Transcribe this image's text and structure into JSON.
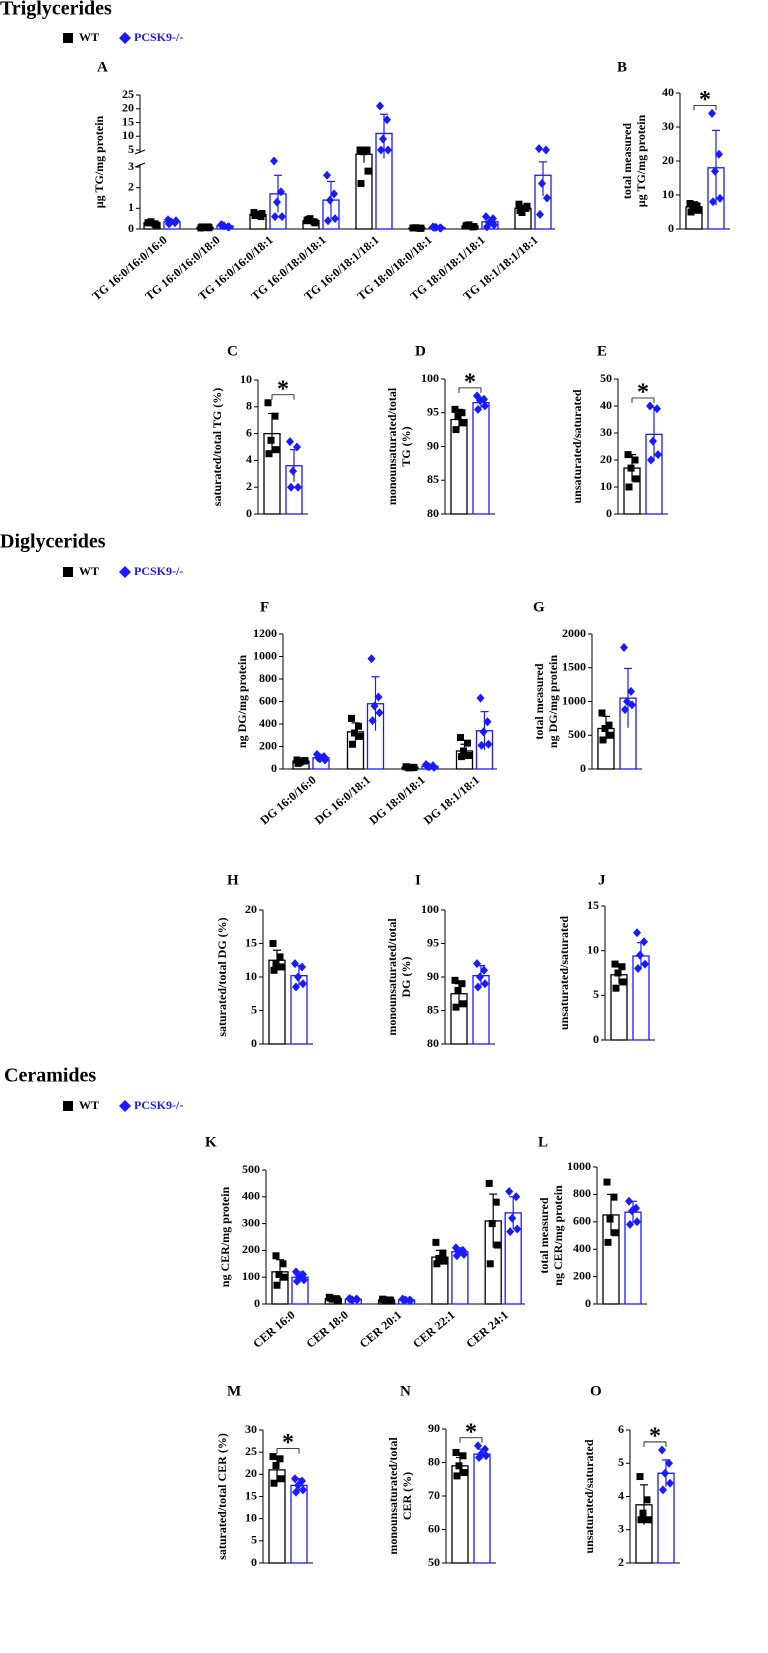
{
  "sections": [
    {
      "title": "Triglycerides"
    },
    {
      "title": "Diglycerides"
    },
    {
      "title": "Ceramides"
    }
  ],
  "chart_data": [
    {
      "type": "bar",
      "panel": "A",
      "ylabel": [
        "µg TG/mg protein"
      ],
      "categories": [
        "TG 16:0/16:0/16:0",
        "TG 16:0/16:0/18:0",
        "TG 16:0/16:0/18:1",
        "TG 16:0/18:0/18:1",
        "TG 16:0/18:1/18:1",
        "TG 18:0/18:0/18:1",
        "TG 18:0/18:1/18:1",
        "TG 18:1/18:1/18:1"
      ],
      "ylim": [
        0,
        25
      ],
      "ybreak": [
        3,
        5
      ],
      "yticks": [
        0,
        1,
        2,
        3,
        5,
        10,
        15,
        20,
        25
      ],
      "series": [
        {
          "name": "WT",
          "color": "#000000",
          "values": [
            0.3,
            0.08,
            0.7,
            0.4,
            4.5,
            0.05,
            0.15,
            1.0
          ],
          "errors": [
            0.08,
            0.03,
            0.1,
            0.1,
            1,
            0.02,
            0.05,
            0.15
          ],
          "points": [
            [
              0.3,
              0.25,
              0.35,
              0.2,
              0.3
            ],
            [
              0.05,
              0.1,
              0.08,
              0.06,
              0.1
            ],
            [
              0.8,
              0.6,
              0.7,
              0.75,
              0.65
            ],
            [
              0.4,
              0.35,
              0.5,
              0.3,
              0.45
            ],
            [
              5,
              5,
              4.8,
              2.8,
              2.2
            ],
            [
              0.05,
              0.03,
              0.06,
              0.04,
              0.05
            ],
            [
              0.15,
              0.1,
              0.2,
              0.12,
              0.18
            ],
            [
              1.2,
              1.0,
              0.8,
              1.1,
              0.9
            ]
          ]
        },
        {
          "name": "PCSK9-/-",
          "color": "#1a1aff",
          "values": [
            0.35,
            0.15,
            1.7,
            1.4,
            11,
            0.07,
            0.35,
            2.6
          ],
          "errors": [
            0.1,
            0.05,
            0.9,
            0.9,
            7,
            0.03,
            0.2,
            1.0
          ],
          "points": [
            [
              0.45,
              0.3,
              0.35,
              0.4,
              0.25
            ],
            [
              0.2,
              0.1,
              0.15,
              0.1,
              0.2
            ],
            [
              3.7,
              1.8,
              1.3,
              0.6,
              0.6
            ],
            [
              2.6,
              1.7,
              1.4,
              0.5,
              0.4
            ],
            [
              21,
              16,
              9,
              5,
              5
            ],
            [
              0.1,
              0.05,
              0.08,
              0.05,
              0.07
            ],
            [
              0.6,
              0.5,
              0.3,
              0.2,
              0.1
            ],
            [
              5.5,
              5,
              2.2,
              1.5,
              0.7
            ]
          ]
        }
      ]
    },
    {
      "type": "bar",
      "panel": "B",
      "ylabel": [
        "total measured",
        "µg TG/mg protein"
      ],
      "ylim": [
        0,
        40
      ],
      "yticks": [
        0,
        10,
        20,
        30,
        40
      ],
      "significance": "*",
      "series": [
        {
          "name": "WT",
          "color": "#000000",
          "values": [
            6.5
          ],
          "errors": [
            1.5
          ],
          "points": [
            [
              7.5,
              6.8,
              6,
              5.5,
              5
            ]
          ]
        },
        {
          "name": "PCSK9-/-",
          "color": "#1a1aff",
          "values": [
            18
          ],
          "errors": [
            11
          ],
          "points": [
            [
              34,
              22,
              17,
              9,
              8
            ]
          ]
        }
      ]
    },
    {
      "type": "bar",
      "panel": "C",
      "ylabel": [
        "saturated/total TG (%)"
      ],
      "ylim": [
        0,
        10
      ],
      "yticks": [
        0,
        2,
        4,
        6,
        8,
        10
      ],
      "significance": "*",
      "series": [
        {
          "name": "WT",
          "color": "#000000",
          "values": [
            6
          ],
          "errors": [
            1.5
          ],
          "points": [
            [
              8.3,
              7.3,
              5.5,
              4.8,
              4.5
            ]
          ]
        },
        {
          "name": "PCSK9-/-",
          "color": "#1a1aff",
          "values": [
            3.6
          ],
          "errors": [
            1.2
          ],
          "points": [
            [
              5.4,
              5.0,
              3.2,
              2.0,
              2.0
            ]
          ]
        }
      ]
    },
    {
      "type": "bar",
      "panel": "D",
      "ylabel": [
        "monounsaturated/total",
        "TG (%)"
      ],
      "ylim": [
        80,
        100
      ],
      "yticks": [
        80,
        85,
        90,
        95,
        100
      ],
      "significance": "*",
      "series": [
        {
          "name": "WT",
          "color": "#000000",
          "values": [
            94
          ],
          "errors": [
            1.5
          ],
          "points": [
            [
              95.5,
              95,
              94.5,
              93.5,
              92.5
            ]
          ]
        },
        {
          "name": "PCSK9-/-",
          "color": "#1a1aff",
          "values": [
            96.5
          ],
          "errors": [
            0.8
          ],
          "points": [
            [
              97.5,
              97,
              96.8,
              96,
              95.5
            ]
          ]
        }
      ]
    },
    {
      "type": "bar",
      "panel": "E",
      "ylabel": [
        "unsaturated/saturated"
      ],
      "ylim": [
        0,
        50
      ],
      "yticks": [
        0,
        10,
        20,
        30,
        40,
        50
      ],
      "significance": "*",
      "series": [
        {
          "name": "WT",
          "color": "#000000",
          "values": [
            17
          ],
          "errors": [
            5
          ],
          "points": [
            [
              22,
              20,
              17,
              13,
              10
            ]
          ]
        },
        {
          "name": "PCSK9-/-",
          "color": "#1a1aff",
          "values": [
            29.5
          ],
          "errors": [
            10
          ],
          "points": [
            [
              40,
              39,
              27,
              22,
              20
            ]
          ]
        }
      ]
    },
    {
      "type": "bar",
      "panel": "F",
      "ylabel": [
        "ng DG/mg protein"
      ],
      "categories": [
        "DG 16:0/16:0",
        "DG 16:0/18:1",
        "DG 18:0/18:1",
        "DG 18:1/18:1"
      ],
      "ylim": [
        0,
        1200
      ],
      "yticks": [
        0,
        200,
        400,
        600,
        800,
        1000,
        1200
      ],
      "series": [
        {
          "name": "WT",
          "color": "#000000",
          "values": [
            70,
            330,
            15,
            160
          ],
          "errors": [
            20,
            80,
            10,
            60
          ],
          "points": [
            [
              80,
              70,
              60,
              75,
              50
            ],
            [
              450,
              380,
              320,
              290,
              220
            ],
            [
              20,
              15,
              10,
              12,
              18
            ],
            [
              280,
              230,
              160,
              120,
              110
            ]
          ]
        },
        {
          "name": "PCSK9-/-",
          "color": "#1a1aff",
          "values": [
            100,
            580,
            25,
            340
          ],
          "errors": [
            30,
            240,
            15,
            170
          ],
          "points": [
            [
              130,
              110,
              90,
              80,
              100
            ],
            [
              980,
              640,
              560,
              500,
              430
            ],
            [
              40,
              30,
              20,
              15,
              25
            ],
            [
              630,
              420,
              330,
              220,
              210
            ]
          ]
        }
      ]
    },
    {
      "type": "bar",
      "panel": "G",
      "ylabel": [
        "total measured",
        "ng DG/mg protein"
      ],
      "ylim": [
        0,
        2000
      ],
      "yticks": [
        0,
        500,
        1000,
        1500,
        2000
      ],
      "series": [
        {
          "name": "WT",
          "color": "#000000",
          "values": [
            600
          ],
          "errors": [
            180
          ],
          "points": [
            [
              830,
              650,
              600,
              500,
              430
            ]
          ]
        },
        {
          "name": "PCSK9-/-",
          "color": "#1a1aff",
          "values": [
            1050
          ],
          "errors": [
            440
          ],
          "points": [
            [
              1800,
              1150,
              1000,
              950,
              880
            ]
          ]
        }
      ]
    },
    {
      "type": "bar",
      "panel": "H",
      "ylabel": [
        "saturated/total DG (%)"
      ],
      "ylim": [
        0,
        20
      ],
      "yticks": [
        0,
        5,
        10,
        15,
        20
      ],
      "series": [
        {
          "name": "WT",
          "color": "#000000",
          "values": [
            12.5
          ],
          "errors": [
            1.5
          ],
          "points": [
            [
              15,
              13,
              12,
              11.5,
              11
            ]
          ]
        },
        {
          "name": "PCSK9-/-",
          "color": "#1a1aff",
          "values": [
            10.2
          ],
          "errors": [
            1.5
          ],
          "points": [
            [
              12,
              11.5,
              10,
              9,
              8.5
            ]
          ]
        }
      ]
    },
    {
      "type": "bar",
      "panel": "I",
      "ylabel": [
        "monounsaturated/total",
        "DG (%)"
      ],
      "ylim": [
        80,
        100
      ],
      "yticks": [
        80,
        85,
        90,
        95,
        100
      ],
      "series": [
        {
          "name": "WT",
          "color": "#000000",
          "values": [
            87.5
          ],
          "errors": [
            1.5
          ],
          "points": [
            [
              89.5,
              89,
              88,
              86,
              85.5
            ]
          ]
        },
        {
          "name": "PCSK9-/-",
          "color": "#1a1aff",
          "values": [
            90.2
          ],
          "errors": [
            1.5
          ],
          "points": [
            [
              92,
              91,
              90,
              89,
              88.5
            ]
          ]
        }
      ]
    },
    {
      "type": "bar",
      "panel": "J",
      "ylabel": [
        "unsaturated/saturated"
      ],
      "ylim": [
        0,
        15
      ],
      "yticks": [
        0,
        5,
        10,
        15
      ],
      "series": [
        {
          "name": "WT",
          "color": "#000000",
          "values": [
            7.3
          ],
          "errors": [
            1
          ],
          "points": [
            [
              8.5,
              8.2,
              7.5,
              6.5,
              5.8
            ]
          ]
        },
        {
          "name": "PCSK9-/-",
          "color": "#1a1aff",
          "values": [
            9.4
          ],
          "errors": [
            1.5
          ],
          "points": [
            [
              12,
              11,
              9.5,
              8.5,
              8
            ]
          ]
        }
      ]
    },
    {
      "type": "bar",
      "panel": "K",
      "ylabel": [
        "ng CER/mg protein"
      ],
      "categories": [
        "CER 16:0",
        "CER 18:0",
        "CER 20:1",
        "CER 22:1",
        "CER 24:1"
      ],
      "ylim": [
        0,
        500
      ],
      "yticks": [
        0,
        100,
        200,
        300,
        400,
        500
      ],
      "series": [
        {
          "name": "WT",
          "color": "#000000",
          "values": [
            120,
            20,
            15,
            175,
            310
          ],
          "errors": [
            45,
            5,
            4,
            25,
            100
          ],
          "points": [
            [
              180,
              150,
              110,
              100,
              70
            ],
            [
              25,
              20,
              18,
              15,
              22
            ],
            [
              18,
              15,
              12,
              14,
              16
            ],
            [
              230,
              190,
              170,
              160,
              150
            ],
            [
              450,
              380,
              300,
              220,
              150
            ]
          ]
        },
        {
          "name": "PCSK9-/-",
          "color": "#1a1aff",
          "values": [
            100,
            18,
            15,
            195,
            340
          ],
          "errors": [
            20,
            3,
            3,
            15,
            60
          ],
          "points": [
            [
              120,
              110,
              100,
              90,
              85
            ],
            [
              20,
              18,
              15,
              17,
              19
            ],
            [
              18,
              14,
              15,
              13,
              16
            ],
            [
              210,
              200,
              190,
              185,
              180
            ],
            [
              420,
              400,
              320,
              280,
              270
            ]
          ]
        }
      ]
    },
    {
      "type": "bar",
      "panel": "L",
      "ylabel": [
        "total measured",
        "ng CER/mg protein"
      ],
      "ylim": [
        0,
        1000
      ],
      "yticks": [
        0,
        200,
        400,
        600,
        800,
        1000
      ],
      "series": [
        {
          "name": "WT",
          "color": "#000000",
          "values": [
            650
          ],
          "errors": [
            150
          ],
          "points": [
            [
              890,
              780,
              620,
              520,
              450
            ]
          ]
        },
        {
          "name": "PCSK9-/-",
          "color": "#1a1aff",
          "values": [
            670
          ],
          "errors": [
            80
          ],
          "points": [
            [
              750,
              700,
              680,
              600,
              580
            ]
          ]
        }
      ]
    },
    {
      "type": "bar",
      "panel": "M",
      "ylabel": [
        "saturated/total CER (%)"
      ],
      "ylim": [
        0,
        30
      ],
      "yticks": [
        0,
        5,
        10,
        15,
        20,
        25,
        30
      ],
      "significance": "*",
      "series": [
        {
          "name": "WT",
          "color": "#000000",
          "values": [
            21
          ],
          "errors": [
            3
          ],
          "points": [
            [
              24,
              23.5,
              22,
              19,
              18
            ]
          ]
        },
        {
          "name": "PCSK9-/-",
          "color": "#1a1aff",
          "values": [
            17.5
          ],
          "errors": [
            1.5
          ],
          "points": [
            [
              19,
              18.5,
              17.5,
              16.5,
              16
            ]
          ]
        }
      ]
    },
    {
      "type": "bar",
      "panel": "N",
      "ylabel": [
        "monounsaturated/total",
        "CER (%)"
      ],
      "ylim": [
        50,
        90
      ],
      "yticks": [
        50,
        60,
        70,
        80,
        90
      ],
      "significance": "*",
      "series": [
        {
          "name": "WT",
          "color": "#000000",
          "values": [
            79
          ],
          "errors": [
            2.5
          ],
          "points": [
            [
              83,
              82,
              79,
              77,
              76
            ]
          ]
        },
        {
          "name": "PCSK9-/-",
          "color": "#1a1aff",
          "values": [
            82.5
          ],
          "errors": [
            1.5
          ],
          "points": [
            [
              85,
              84,
              82.5,
              82,
              81.5
            ]
          ]
        }
      ]
    },
    {
      "type": "bar",
      "panel": "O",
      "ylabel": [
        "unsaturated/saturated"
      ],
      "ylim": [
        2,
        6
      ],
      "yticks": [
        2,
        3,
        4,
        5,
        6
      ],
      "significance": "*",
      "series": [
        {
          "name": "WT",
          "color": "#000000",
          "values": [
            3.75
          ],
          "errors": [
            0.6
          ],
          "points": [
            [
              4.6,
              3.9,
              3.5,
              3.3,
              3.3
            ]
          ]
        },
        {
          "name": "PCSK9-/-",
          "color": "#1a1aff",
          "values": [
            4.7
          ],
          "errors": [
            0.4
          ],
          "points": [
            [
              5.4,
              5,
              4.7,
              4.4,
              4.2
            ]
          ]
        }
      ]
    }
  ]
}
